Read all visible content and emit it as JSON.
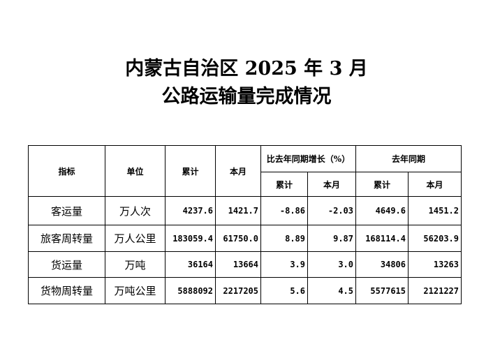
{
  "title": {
    "line1": "内蒙古自治区 2025 年 3 月",
    "line2": "公路运输量完成情况"
  },
  "table": {
    "headers": {
      "indicator": "指标",
      "unit": "单位",
      "cumulative": "累计",
      "month": "本月",
      "growth": "比去年同期增长（%）",
      "last_year": "去年同期",
      "sub_cumulative": "累计",
      "sub_month": "本月"
    },
    "rows": [
      {
        "indicator": "客运量",
        "unit": "万人次",
        "values": [
          "4237.6",
          "1421.7",
          "-8.86",
          "-2.03",
          "4649.6",
          "1451.2"
        ]
      },
      {
        "indicator": "旅客周转量",
        "unit": "万人公里",
        "values": [
          "183059.4",
          "61750.0",
          "8.89",
          "9.87",
          "168114.4",
          "56203.9"
        ]
      },
      {
        "indicator": "货运量",
        "unit": "万吨",
        "values": [
          "36164",
          "13664",
          "3.9",
          "3.0",
          "34806",
          "13263"
        ]
      },
      {
        "indicator": "货物周转量",
        "unit": "万吨公里",
        "values": [
          "5888092",
          "2217205",
          "5.6",
          "4.5",
          "5577615",
          "2121227"
        ]
      }
    ]
  }
}
